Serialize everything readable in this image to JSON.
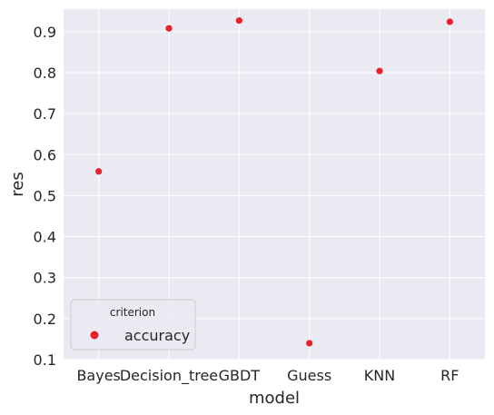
{
  "chart_data": {
    "type": "scatter",
    "categories": [
      "Bayes",
      "Decision_tree",
      "GBDT",
      "Guess",
      "KNN",
      "RF"
    ],
    "series": [
      {
        "name": "accuracy",
        "color": "#e8202a",
        "values": [
          0.559,
          0.908,
          0.927,
          0.14,
          0.804,
          0.924
        ]
      }
    ],
    "xlabel": "model",
    "ylabel": "res",
    "ylim": [
      0.1,
      0.955
    ],
    "yticks": [
      "0.1",
      "0.2",
      "0.3",
      "0.4",
      "0.5",
      "0.6",
      "0.7",
      "0.8",
      "0.9"
    ],
    "grid": true,
    "legend": {
      "title": "criterion",
      "placement": "lower-left"
    },
    "background": "#eaeaf2",
    "grid_color": "#ffffff"
  }
}
